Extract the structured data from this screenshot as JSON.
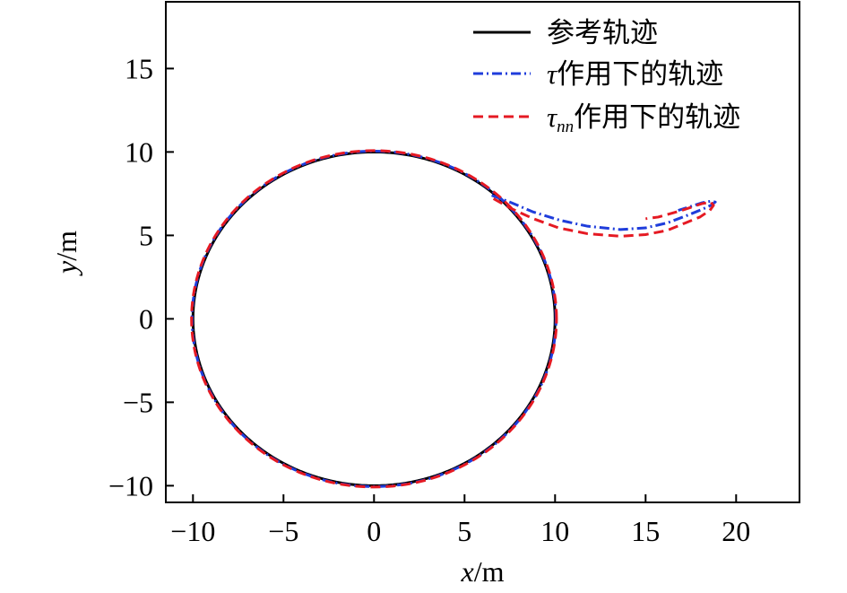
{
  "chart_data": {
    "type": "line",
    "title": "",
    "xlabel": {
      "var": "x",
      "unit": "/m"
    },
    "ylabel": {
      "var": "y",
      "unit": "/m"
    },
    "xlim": [
      -11.5,
      23.5
    ],
    "ylim": [
      -11,
      19
    ],
    "xticks": [
      -10,
      -5,
      0,
      5,
      10,
      15,
      20
    ],
    "yticks": [
      -10,
      -5,
      0,
      5,
      10,
      15
    ],
    "xtick_labels": [
      "−10",
      "−5",
      "0",
      "5",
      "10",
      "15",
      "20"
    ],
    "ytick_labels": [
      "−10",
      "−5",
      "0",
      "5",
      "10",
      "15"
    ],
    "grid": false,
    "legend_position": "top-right",
    "series": [
      {
        "name": "参考轨迹",
        "color": "#000000",
        "style": "solid",
        "shape": "circle",
        "center": [
          0,
          0
        ],
        "radius": 10
      },
      {
        "name": {
          "symbol": "τ",
          "sub": "",
          "text": "作用下的轨迹"
        },
        "color": "#1f3ddb",
        "style": "dashdot",
        "shape": "circle-with-tail",
        "center": [
          0,
          0
        ],
        "radius": 10.05,
        "tail": [
          [
            6.5,
            7.4
          ],
          [
            7.5,
            7.0
          ],
          [
            8.8,
            6.4
          ],
          [
            10.3,
            5.9
          ],
          [
            11.8,
            5.55
          ],
          [
            13.6,
            5.35
          ],
          [
            15.0,
            5.45
          ],
          [
            16.2,
            5.75
          ],
          [
            17.3,
            6.2
          ],
          [
            18.1,
            6.55
          ],
          [
            18.6,
            6.8
          ],
          [
            18.85,
            7.0
          ],
          [
            18.6,
            7.05
          ],
          [
            18.1,
            6.95
          ],
          [
            17.4,
            6.7
          ],
          [
            16.8,
            6.5
          ]
        ]
      },
      {
        "name": {
          "symbol": "τ",
          "sub": "nn",
          "text": "作用下的轨迹"
        },
        "color": "#e51a23",
        "style": "dashed",
        "shape": "circle-with-tail",
        "center": [
          0,
          0
        ],
        "radius": 10.08,
        "tail": [
          [
            6.6,
            7.2
          ],
          [
            7.6,
            6.6
          ],
          [
            8.8,
            6.0
          ],
          [
            10.2,
            5.45
          ],
          [
            11.8,
            5.1
          ],
          [
            13.6,
            4.95
          ],
          [
            15.0,
            5.05
          ],
          [
            16.2,
            5.3
          ],
          [
            17.2,
            5.75
          ],
          [
            18.0,
            6.1
          ],
          [
            18.55,
            6.5
          ],
          [
            18.75,
            6.8
          ],
          [
            18.6,
            7.0
          ],
          [
            18.1,
            6.9
          ],
          [
            17.0,
            6.5
          ],
          [
            15.7,
            6.1
          ],
          [
            15.0,
            6.0
          ]
        ]
      }
    ]
  }
}
